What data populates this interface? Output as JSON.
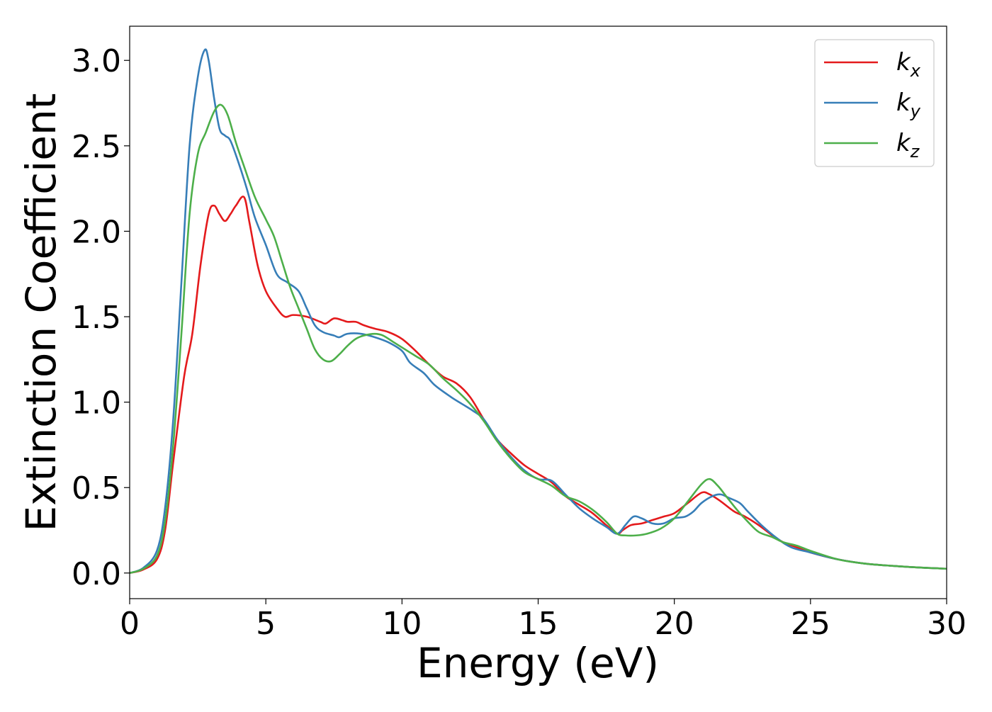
{
  "chart_data": {
    "type": "line",
    "title": "",
    "xlabel": "Energy (eV)",
    "ylabel": "Extinction Coefficient",
    "xlim": [
      0,
      30
    ],
    "ylim": [
      -0.15,
      3.2
    ],
    "xticks": [
      0,
      5,
      10,
      15,
      20,
      25,
      30
    ],
    "yticks": [
      0.0,
      0.5,
      1.0,
      1.5,
      2.0,
      2.5,
      3.0
    ],
    "xtick_labels": [
      "0",
      "5",
      "10",
      "15",
      "20",
      "25",
      "30"
    ],
    "ytick_labels": [
      "0.0",
      "0.5",
      "1.0",
      "1.5",
      "2.0",
      "2.5",
      "3.0"
    ],
    "grid": false,
    "legend_position": "top-right",
    "series": [
      {
        "name": "k_x",
        "legend_base": "k",
        "legend_sub": "x",
        "color": "#e41a1c",
        "points": [
          [
            0,
            0
          ],
          [
            0.5,
            0.02
          ],
          [
            1,
            0.08
          ],
          [
            1.3,
            0.25
          ],
          [
            1.6,
            0.65
          ],
          [
            2,
            1.15
          ],
          [
            2.3,
            1.4
          ],
          [
            2.6,
            1.8
          ],
          [
            2.9,
            2.1
          ],
          [
            3.1,
            2.15
          ],
          [
            3.3,
            2.1
          ],
          [
            3.5,
            2.06
          ],
          [
            3.7,
            2.1
          ],
          [
            3.9,
            2.15
          ],
          [
            4.2,
            2.2
          ],
          [
            4.4,
            2.05
          ],
          [
            4.7,
            1.8
          ],
          [
            5,
            1.65
          ],
          [
            5.4,
            1.55
          ],
          [
            5.7,
            1.5
          ],
          [
            6,
            1.51
          ],
          [
            6.5,
            1.5
          ],
          [
            7,
            1.47
          ],
          [
            7.2,
            1.46
          ],
          [
            7.5,
            1.49
          ],
          [
            7.8,
            1.48
          ],
          [
            8,
            1.47
          ],
          [
            8.3,
            1.47
          ],
          [
            8.6,
            1.45
          ],
          [
            9,
            1.43
          ],
          [
            9.5,
            1.41
          ],
          [
            10,
            1.37
          ],
          [
            10.5,
            1.3
          ],
          [
            11,
            1.22
          ],
          [
            11.5,
            1.15
          ],
          [
            12,
            1.11
          ],
          [
            12.5,
            1.03
          ],
          [
            13,
            0.9
          ],
          [
            13.5,
            0.78
          ],
          [
            14,
            0.7
          ],
          [
            14.5,
            0.63
          ],
          [
            15,
            0.58
          ],
          [
            15.5,
            0.53
          ],
          [
            16,
            0.45
          ],
          [
            16.5,
            0.4
          ],
          [
            17,
            0.35
          ],
          [
            17.5,
            0.28
          ],
          [
            17.9,
            0.23
          ],
          [
            18.1,
            0.25
          ],
          [
            18.4,
            0.28
          ],
          [
            18.8,
            0.29
          ],
          [
            19.2,
            0.31
          ],
          [
            19.6,
            0.33
          ],
          [
            20,
            0.35
          ],
          [
            20.5,
            0.41
          ],
          [
            21,
            0.47
          ],
          [
            21.3,
            0.46
          ],
          [
            21.7,
            0.42
          ],
          [
            22.2,
            0.36
          ],
          [
            22.6,
            0.33
          ],
          [
            23.1,
            0.28
          ],
          [
            23.6,
            0.22
          ],
          [
            24,
            0.18
          ],
          [
            24.5,
            0.15
          ],
          [
            25,
            0.12
          ],
          [
            26,
            0.08
          ],
          [
            27,
            0.055
          ],
          [
            28,
            0.042
          ],
          [
            29,
            0.032
          ],
          [
            30,
            0.025
          ]
        ]
      },
      {
        "name": "k_y",
        "legend_base": "k",
        "legend_sub": "y",
        "color": "#377eb8",
        "points": [
          [
            0,
            0
          ],
          [
            0.5,
            0.03
          ],
          [
            1,
            0.13
          ],
          [
            1.3,
            0.38
          ],
          [
            1.6,
            0.9
          ],
          [
            1.9,
            1.7
          ],
          [
            2.2,
            2.5
          ],
          [
            2.5,
            2.9
          ],
          [
            2.75,
            3.06
          ],
          [
            2.9,
            3.0
          ],
          [
            3.1,
            2.78
          ],
          [
            3.3,
            2.6
          ],
          [
            3.5,
            2.56
          ],
          [
            3.7,
            2.53
          ],
          [
            4,
            2.4
          ],
          [
            4.3,
            2.25
          ],
          [
            4.6,
            2.08
          ],
          [
            5,
            1.92
          ],
          [
            5.4,
            1.75
          ],
          [
            5.8,
            1.7
          ],
          [
            6.2,
            1.65
          ],
          [
            6.5,
            1.55
          ],
          [
            6.8,
            1.45
          ],
          [
            7.1,
            1.41
          ],
          [
            7.5,
            1.39
          ],
          [
            7.7,
            1.38
          ],
          [
            8,
            1.4
          ],
          [
            8.5,
            1.4
          ],
          [
            9,
            1.38
          ],
          [
            9.5,
            1.35
          ],
          [
            10,
            1.3
          ],
          [
            10.3,
            1.23
          ],
          [
            10.8,
            1.17
          ],
          [
            11.2,
            1.1
          ],
          [
            11.8,
            1.03
          ],
          [
            12.2,
            0.99
          ],
          [
            12.6,
            0.95
          ],
          [
            13,
            0.9
          ],
          [
            13.5,
            0.78
          ],
          [
            14,
            0.68
          ],
          [
            14.5,
            0.6
          ],
          [
            15,
            0.55
          ],
          [
            15.5,
            0.54
          ],
          [
            16,
            0.46
          ],
          [
            16.5,
            0.38
          ],
          [
            17,
            0.32
          ],
          [
            17.5,
            0.27
          ],
          [
            17.9,
            0.23
          ],
          [
            18.2,
            0.28
          ],
          [
            18.5,
            0.33
          ],
          [
            18.8,
            0.32
          ],
          [
            19.2,
            0.29
          ],
          [
            19.6,
            0.29
          ],
          [
            20,
            0.32
          ],
          [
            20.4,
            0.33
          ],
          [
            20.7,
            0.36
          ],
          [
            21,
            0.41
          ],
          [
            21.4,
            0.45
          ],
          [
            21.7,
            0.46
          ],
          [
            22,
            0.44
          ],
          [
            22.4,
            0.41
          ],
          [
            22.7,
            0.36
          ],
          [
            23.2,
            0.28
          ],
          [
            23.8,
            0.2
          ],
          [
            24.3,
            0.15
          ],
          [
            25,
            0.12
          ],
          [
            26,
            0.08
          ],
          [
            27,
            0.055
          ],
          [
            28,
            0.042
          ],
          [
            29,
            0.032
          ],
          [
            30,
            0.025
          ]
        ]
      },
      {
        "name": "k_z",
        "legend_base": "k",
        "legend_sub": "z",
        "color": "#4daf4a",
        "points": [
          [
            0,
            0
          ],
          [
            0.5,
            0.025
          ],
          [
            1,
            0.1
          ],
          [
            1.3,
            0.3
          ],
          [
            1.6,
            0.75
          ],
          [
            1.9,
            1.4
          ],
          [
            2.2,
            2.1
          ],
          [
            2.5,
            2.45
          ],
          [
            2.8,
            2.58
          ],
          [
            3.1,
            2.7
          ],
          [
            3.35,
            2.74
          ],
          [
            3.6,
            2.68
          ],
          [
            3.9,
            2.52
          ],
          [
            4.2,
            2.38
          ],
          [
            4.6,
            2.2
          ],
          [
            5,
            2.07
          ],
          [
            5.3,
            1.97
          ],
          [
            5.6,
            1.82
          ],
          [
            5.9,
            1.67
          ],
          [
            6.2,
            1.55
          ],
          [
            6.5,
            1.43
          ],
          [
            6.8,
            1.31
          ],
          [
            7.1,
            1.25
          ],
          [
            7.4,
            1.24
          ],
          [
            7.7,
            1.28
          ],
          [
            8,
            1.33
          ],
          [
            8.3,
            1.37
          ],
          [
            8.6,
            1.39
          ],
          [
            9,
            1.4
          ],
          [
            9.3,
            1.39
          ],
          [
            9.7,
            1.35
          ],
          [
            10,
            1.32
          ],
          [
            10.5,
            1.27
          ],
          [
            11,
            1.22
          ],
          [
            11.5,
            1.14
          ],
          [
            12,
            1.07
          ],
          [
            12.5,
            0.99
          ],
          [
            13,
            0.89
          ],
          [
            13.5,
            0.77
          ],
          [
            14,
            0.67
          ],
          [
            14.5,
            0.59
          ],
          [
            15,
            0.55
          ],
          [
            15.5,
            0.51
          ],
          [
            16,
            0.45
          ],
          [
            16.5,
            0.42
          ],
          [
            17,
            0.37
          ],
          [
            17.5,
            0.3
          ],
          [
            17.9,
            0.23
          ],
          [
            18.2,
            0.22
          ],
          [
            18.6,
            0.22
          ],
          [
            19,
            0.23
          ],
          [
            19.5,
            0.26
          ],
          [
            20,
            0.32
          ],
          [
            20.5,
            0.42
          ],
          [
            21,
            0.52
          ],
          [
            21.3,
            0.55
          ],
          [
            21.6,
            0.51
          ],
          [
            21.9,
            0.45
          ],
          [
            22.3,
            0.37
          ],
          [
            22.7,
            0.3
          ],
          [
            23.1,
            0.24
          ],
          [
            23.6,
            0.21
          ],
          [
            24,
            0.18
          ],
          [
            24.5,
            0.16
          ],
          [
            25,
            0.13
          ],
          [
            26,
            0.08
          ],
          [
            27,
            0.055
          ],
          [
            28,
            0.042
          ],
          [
            29,
            0.032
          ],
          [
            30,
            0.025
          ]
        ]
      }
    ]
  }
}
